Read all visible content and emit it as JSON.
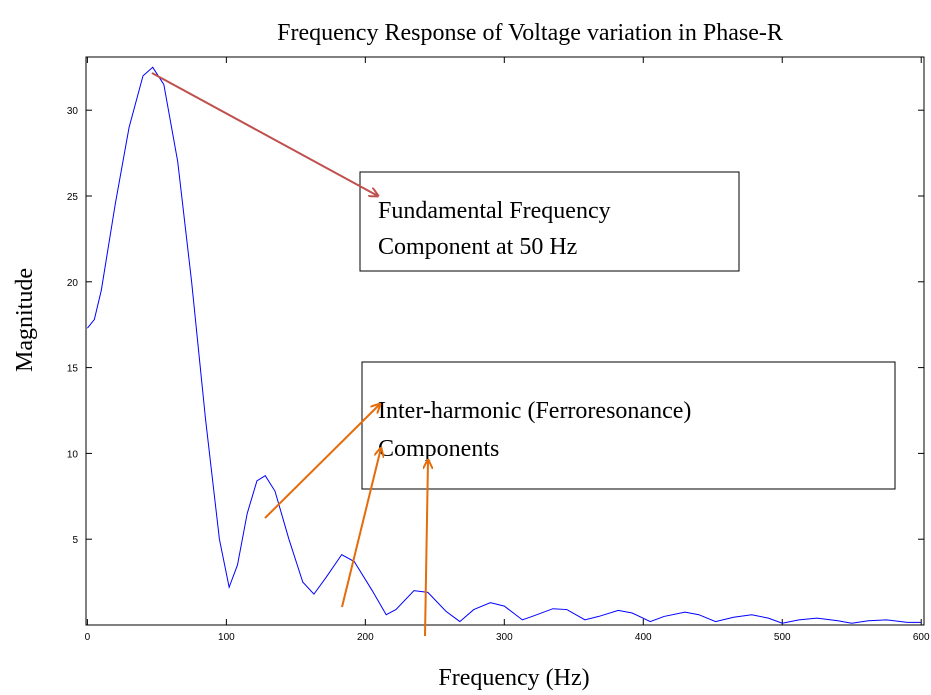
{
  "chart_data": {
    "type": "line",
    "title": "Frequency Response of Voltage variation in Phase-R",
    "x_label": "Frequency (Hz)",
    "y_label": "Magnitude",
    "x": [
      0,
      5,
      10,
      20,
      30,
      40,
      47,
      55,
      65,
      75,
      85,
      95,
      102,
      108,
      115,
      122,
      128,
      135,
      145,
      155,
      163,
      172,
      183,
      192,
      205,
      215,
      222,
      235,
      245,
      258,
      268,
      278,
      290,
      300,
      313,
      320,
      335,
      345,
      358,
      368,
      382,
      392,
      405,
      415,
      430,
      440,
      452,
      465,
      478,
      490,
      500,
      512,
      525,
      540,
      550,
      562,
      575,
      590,
      600
    ],
    "series": [
      {
        "color": "#0000ff",
        "values": [
          17.3,
          17.8,
          19.5,
          24.5,
          29,
          32,
          32.5,
          31.5,
          27,
          20,
          12,
          5,
          2.2,
          3.5,
          6.5,
          8.4,
          8.7,
          7.8,
          5,
          2.5,
          1.8,
          2.8,
          4.1,
          3.7,
          2,
          0.6,
          0.9,
          2,
          1.9,
          0.8,
          0.2,
          0.9,
          1.3,
          1.1,
          0.3,
          0.5,
          0.95,
          0.9,
          0.3,
          0.5,
          0.85,
          0.7,
          0.2,
          0.5,
          0.75,
          0.6,
          0.2,
          0.45,
          0.6,
          0.4,
          0.1,
          0.3,
          0.4,
          0.25,
          0.1,
          0.25,
          0.3,
          0.15,
          0.15
        ]
      }
    ],
    "xlim": [
      -1,
      602
    ],
    "ylim": [
      0,
      33.1
    ],
    "xticks": [
      0,
      100,
      200,
      300,
      400,
      500,
      600
    ],
    "yticks": [
      5,
      10,
      15,
      20,
      25,
      30
    ],
    "annotations": [
      {
        "lines": [
          "Fundamental Frequency",
          "Component at 50 Hz"
        ]
      },
      {
        "lines": [
          "Inter-harmonic (Ferroresonance)",
          "Components"
        ]
      }
    ]
  }
}
